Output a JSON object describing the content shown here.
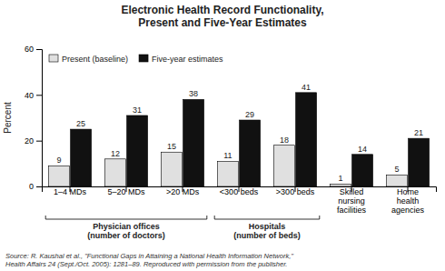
{
  "chart_data": {
    "type": "bar",
    "title": "Electronic Health Record Functionality,\nPresent and Five-Year Estimates",
    "ylabel": "Percent",
    "categories": [
      "1–4 MDs",
      "5–20 MDs",
      ">20 MDs",
      "<300 beds",
      ">300 beds",
      "Skilled\nnursing\nfacilities",
      "Home\nhealth\nagencies"
    ],
    "series": [
      {
        "name": "Present (baseline)",
        "color": "#e0e0e0",
        "values": [
          9,
          12,
          15,
          11,
          18,
          1,
          5
        ]
      },
      {
        "name": "Five-year estimates",
        "color": "#111111",
        "values": [
          25,
          31,
          38,
          29,
          41,
          14,
          21
        ]
      }
    ],
    "ylim": [
      0,
      60
    ],
    "yticks": [
      0,
      20,
      40,
      60
    ],
    "grid": false,
    "legend": "upper left",
    "data_labels": true,
    "annotations": [
      {
        "text": "Physician offices\n(number of doctors)",
        "span": [
          "1–4 MDs",
          ">20 MDs"
        ]
      },
      {
        "text": "Hospitals\n(number of beds)",
        "span": [
          "<300 beds",
          ">300 beds"
        ]
      }
    ],
    "source": "Source: R. Kaushal et al., \"Functional Gaps in Attaining a National Health Information Network,\"\nHealth Affairs 24 (Sept./Oct. 2005): 1281–89. Reproduced with permission from the publisher."
  }
}
